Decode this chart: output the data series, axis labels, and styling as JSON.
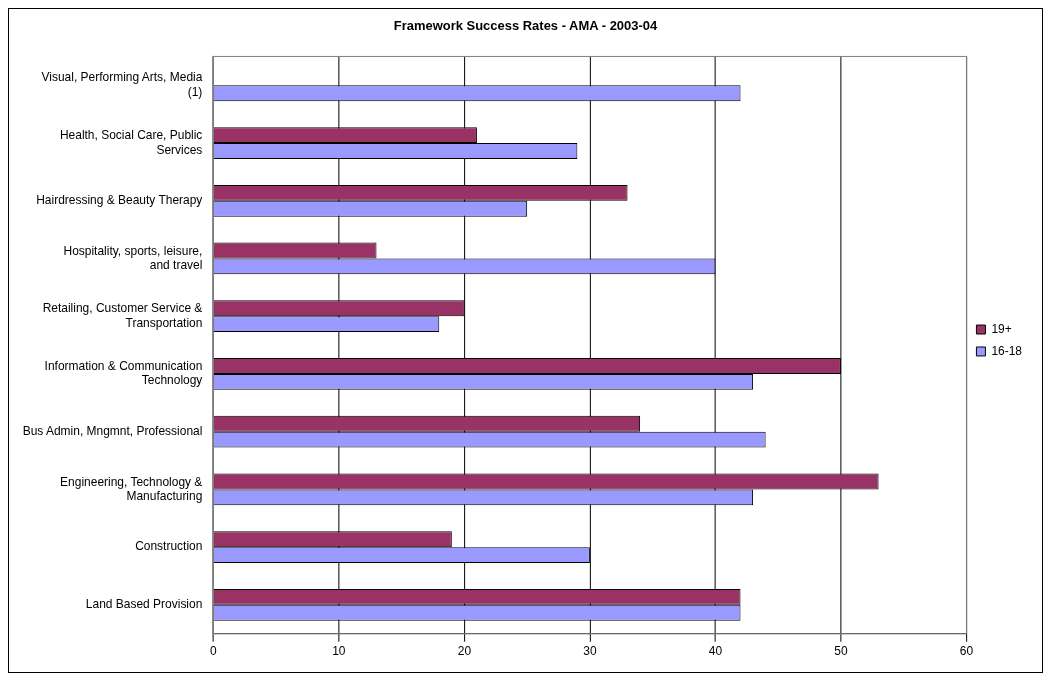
{
  "chart_data": {
    "type": "bar",
    "orientation": "horizontal",
    "title": "Framework Success Rates - AMA - 2003-04",
    "categories": [
      "Visual, Performing Arts, Media (1)",
      "Health, Social Care, Public Services",
      "Hairdressing & Beauty Therapy",
      "Hospitality, sports, leisure, and travel",
      "Retailing, Customer Service & Transportation",
      "Information & Communication Technology",
      "Bus Admin, Mngmnt, Professional",
      "Engineering, Technology & Manufacturing",
      "Construction",
      "Land Based Provision"
    ],
    "series": [
      {
        "name": "19+",
        "color": "#993366",
        "values": [
          null,
          21,
          33,
          13,
          20,
          50,
          34,
          53,
          19,
          42
        ]
      },
      {
        "name": "16-18",
        "color": "#9999ff",
        "values": [
          42,
          29,
          25,
          40,
          18,
          43,
          44,
          43,
          30,
          42
        ]
      }
    ],
    "xlim": [
      0,
      60
    ],
    "xticks": [
      0,
      10,
      20,
      30,
      40,
      50,
      60
    ],
    "grid": "x",
    "legend": "right"
  }
}
